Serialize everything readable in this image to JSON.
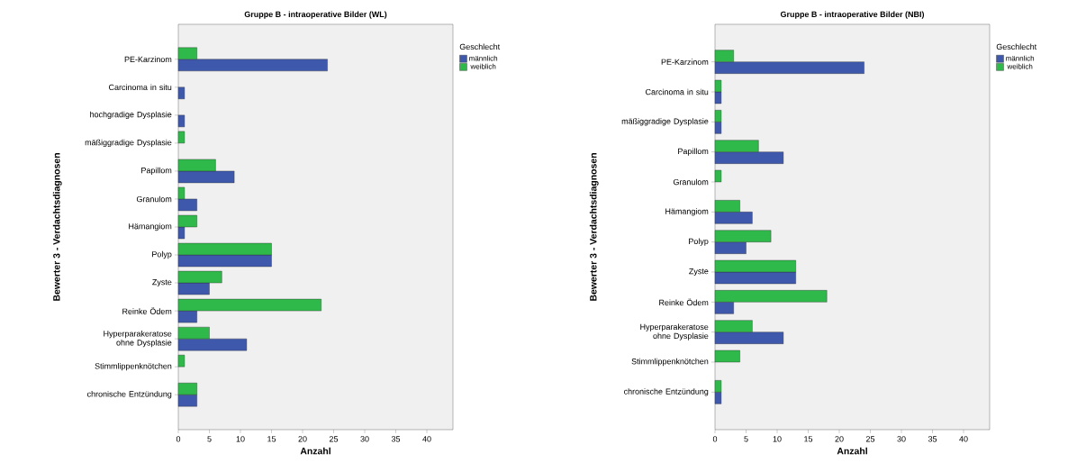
{
  "chart_data": [
    {
      "type": "bar",
      "orientation": "horizontal",
      "title": "Gruppe B - intraoperative Bilder (WL)",
      "xlabel": "Anzahl",
      "ylabel": "Bewerter 3 - Verdachtsdiagnosen",
      "legend_title": "Geschlecht",
      "legend": "top right",
      "categories": [
        "PE-Karzinom",
        "Carcinoma in situ",
        "hochgradige Dysplasie",
        "mäßiggradige Dysplasie",
        "Papillom",
        "Granulom",
        "Hämangiom",
        "Polyp",
        "Zyste",
        "Reinke Ödem",
        "Hyperparakeratose ohne Dysplasie",
        "Stimmlippenknötchen",
        "chronische Entzündung"
      ],
      "series": [
        {
          "name": "männlich",
          "color": "#3e58ac",
          "values": [
            24,
            1,
            1,
            null,
            9,
            3,
            1,
            15,
            5,
            3,
            11,
            null,
            3
          ]
        },
        {
          "name": "weiblich",
          "color": "#2eb94a",
          "values": [
            3,
            null,
            null,
            1,
            6,
            1,
            3,
            15,
            7,
            23,
            5,
            1,
            3
          ]
        }
      ],
      "xlim": [
        0,
        44.2
      ],
      "xticks": [
        0,
        5,
        10,
        15,
        20,
        25,
        30,
        35,
        40
      ]
    },
    {
      "type": "bar",
      "orientation": "horizontal",
      "title": "Gruppe B - intraoperative Bilder (NBI)",
      "xlabel": "Anzahl",
      "ylabel": "Bewerter 3 - Verdachtsdiagnosen",
      "legend_title": "Geschlecht",
      "legend": "top right",
      "categories": [
        "PE-Karzinom",
        "Carcinoma in situ",
        "mäßiggradige Dysplasie",
        "Papillom",
        "Granulom",
        "Hämangiom",
        "Polyp",
        "Zyste",
        "Reinke Ödem",
        "Hyperparakeratose ohne Dysplasie",
        "Stimmlippenknötchen",
        "chronische Entzündung"
      ],
      "series": [
        {
          "name": "männlich",
          "color": "#3e58ac",
          "values": [
            24,
            1,
            1,
            11,
            null,
            6,
            5,
            13,
            3,
            11,
            null,
            1
          ]
        },
        {
          "name": "weiblich",
          "color": "#2eb94a",
          "values": [
            3,
            1,
            1,
            7,
            1,
            4,
            9,
            13,
            18,
            6,
            4,
            1
          ]
        }
      ],
      "xlim": [
        0,
        44.2
      ],
      "xticks": [
        0,
        5,
        10,
        15,
        20,
        25,
        30,
        35,
        40
      ]
    }
  ]
}
